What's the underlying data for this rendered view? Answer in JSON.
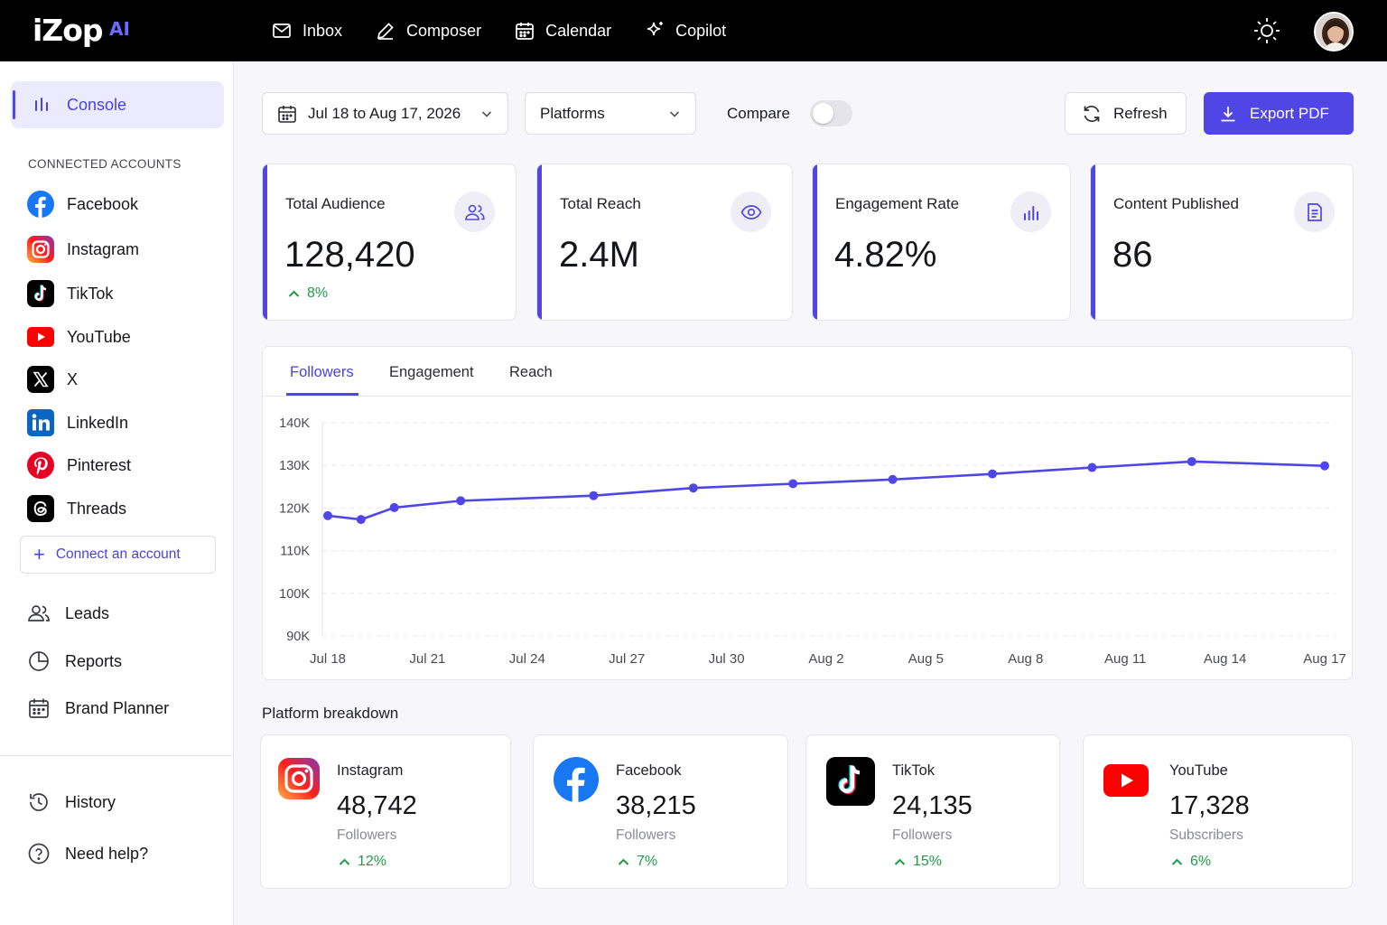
{
  "app": {
    "logo": "iZop",
    "logo_suffix": "AI"
  },
  "nav": [
    {
      "label": "Inbox",
      "icon": "mail-icon"
    },
    {
      "label": "Composer",
      "icon": "pen-icon"
    },
    {
      "label": "Calendar",
      "icon": "calendar-icon"
    },
    {
      "label": "Copilot",
      "icon": "sparkle-icon"
    }
  ],
  "sidebar": {
    "console_label": "Console",
    "section_title": "CONNECTED ACCOUNTS",
    "accounts": [
      "Facebook",
      "Instagram",
      "TikTok",
      "YouTube",
      "X",
      "LinkedIn",
      "Pinterest",
      "Threads"
    ],
    "connect_label": "Connect an account",
    "links": [
      "Leads",
      "Reports",
      "Brand Planner"
    ],
    "bottom_links": [
      "History",
      "Need help?"
    ]
  },
  "controls": {
    "date_range": "Jul 18 to Aug 17, 2026",
    "platforms": "Platforms",
    "compare": "Compare",
    "compare_enabled": false,
    "refresh": "Refresh",
    "export": "Export PDF"
  },
  "stats": [
    {
      "label": "Total Audience",
      "value": "128,420",
      "delta": "8%",
      "icon": "users-icon"
    },
    {
      "label": "Total Reach",
      "value": "2.4M",
      "icon": "eye-icon"
    },
    {
      "label": "Engagement Rate",
      "value": "4.82%",
      "icon": "bar-chart-icon"
    },
    {
      "label": "Content Published",
      "value": "86",
      "icon": "document-icon"
    }
  ],
  "chart_tabs": [
    "Followers",
    "Engagement",
    "Reach"
  ],
  "active_tab": "Followers",
  "chart_data": {
    "type": "line",
    "x": [
      "Jul 18",
      "Jul 19",
      "Jul 20",
      "Jul 22",
      "Jul 26",
      "Jul 29",
      "Aug 1",
      "Aug 4",
      "Aug 7",
      "Aug 10",
      "Aug 13",
      "Aug 17"
    ],
    "x_ticks": [
      "Jul 18",
      "Jul 21",
      "Jul 24",
      "Jul 27",
      "Jul 30",
      "Aug 2",
      "Aug 5",
      "Aug 8",
      "Aug 11",
      "Aug 14",
      "Aug 17"
    ],
    "y_ticks": [
      "140K",
      "130K",
      "120K",
      "110K",
      "100K",
      "90K"
    ],
    "series": [
      {
        "values": [
          118200,
          117300,
          120100,
          121700,
          122900,
          124700,
          125700,
          126700,
          128000,
          129500,
          130900,
          129900
        ]
      }
    ],
    "ylim": [
      90000,
      140000
    ],
    "grid": true,
    "color": "#4f46e5"
  },
  "breakdown": {
    "title": "Platform breakdown",
    "cards": [
      {
        "name": "Instagram",
        "value": "48,742",
        "unit": "Followers",
        "delta": "12%",
        "icon": "instagram-icon"
      },
      {
        "name": "Facebook",
        "value": "38,215",
        "unit": "Followers",
        "delta": "7%",
        "icon": "facebook-icon"
      },
      {
        "name": "TikTok",
        "value": "24,135",
        "unit": "Followers",
        "delta": "15%",
        "icon": "tiktok-icon"
      },
      {
        "name": "YouTube",
        "value": "17,328",
        "unit": "Subscribers",
        "delta": "6%",
        "icon": "youtube-icon"
      }
    ]
  },
  "colors": {
    "accent": "#4f46e5",
    "positive": "#1f9c48",
    "topbar": "#000000"
  }
}
